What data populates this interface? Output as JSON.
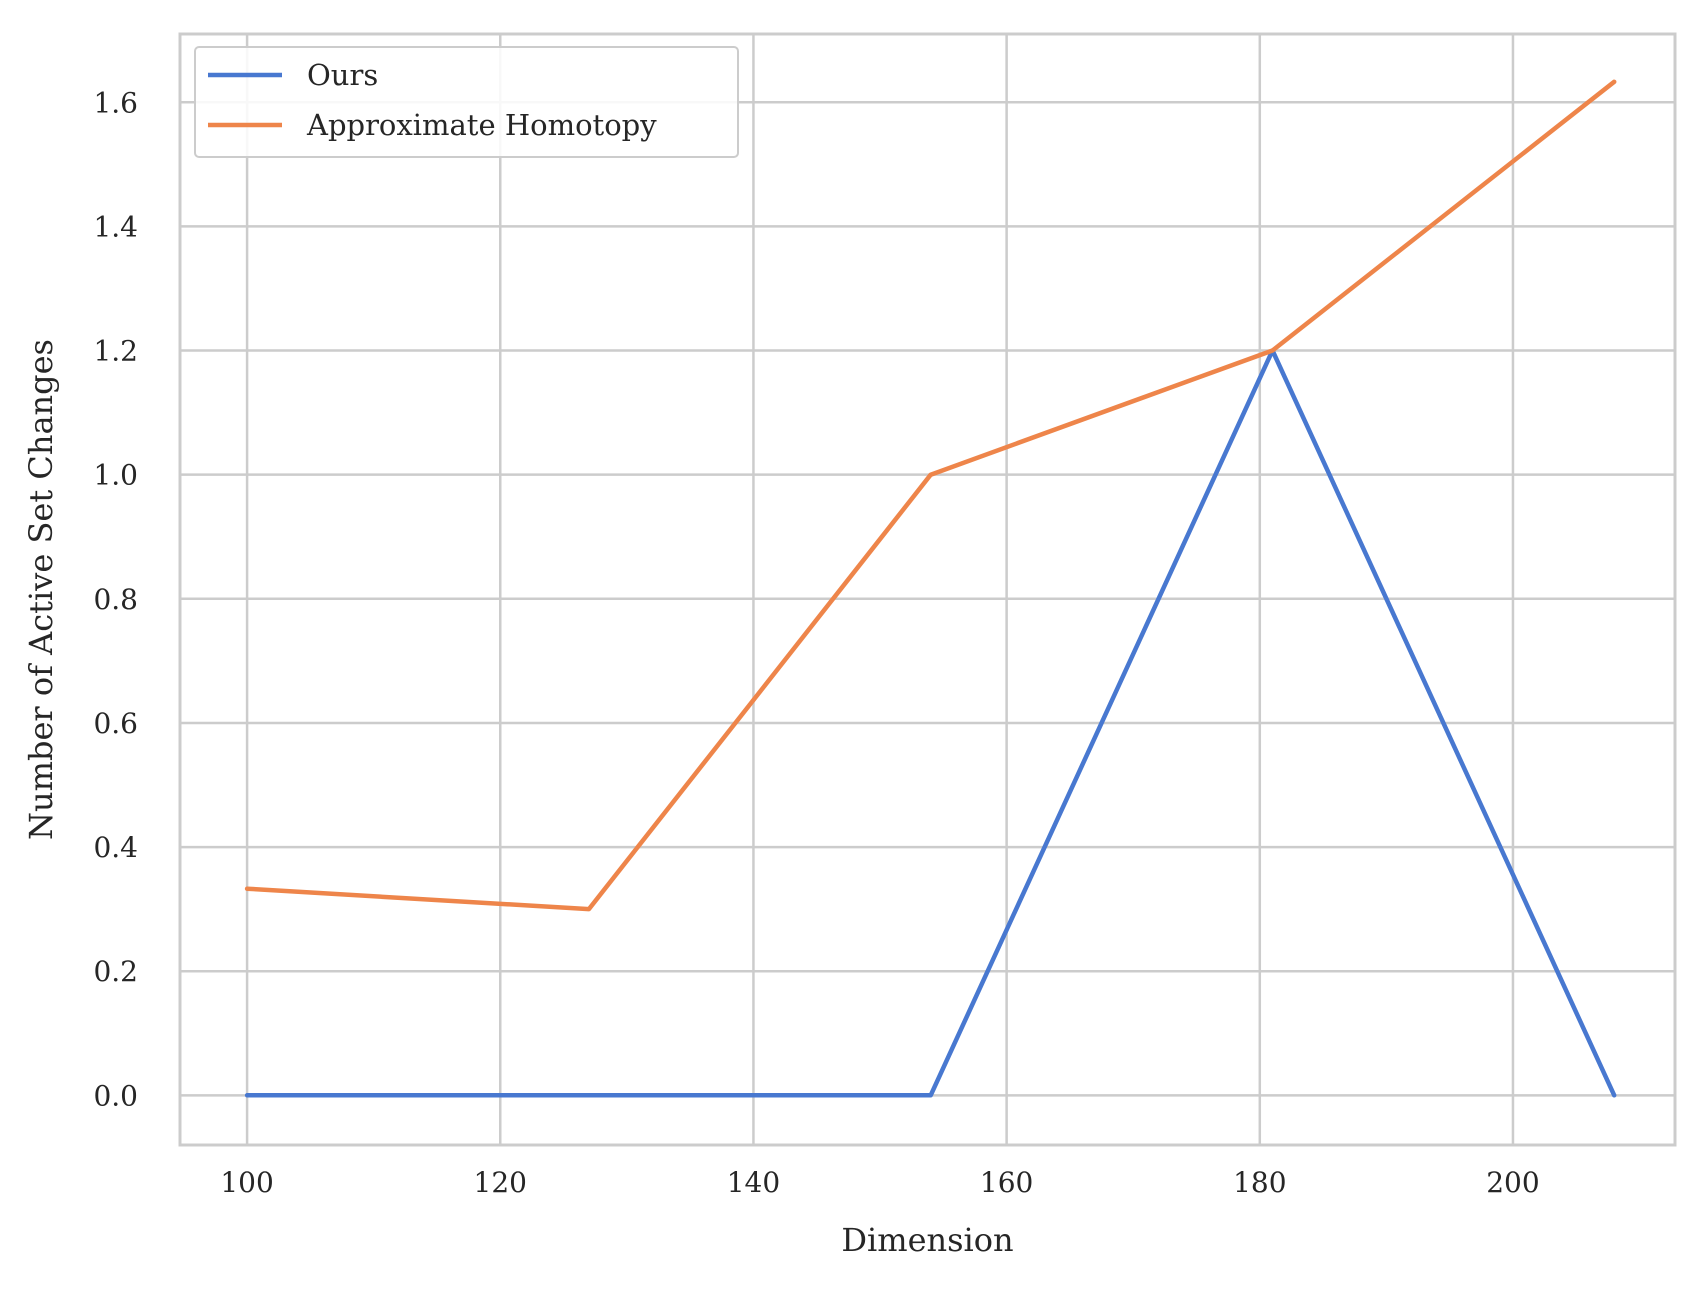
{
  "chart_data": {
    "type": "line",
    "xlabel": "Dimension",
    "ylabel": "Number of Active Set Changes",
    "xlim": [
      94.7,
      212.8
    ],
    "ylim": [
      -0.08,
      1.71
    ],
    "x_ticks": [
      "100",
      "120",
      "140",
      "160",
      "180",
      "200"
    ],
    "y_ticks": [
      "0.0",
      "0.2",
      "0.4",
      "0.6",
      "0.8",
      "1.0",
      "1.2",
      "1.4",
      "1.6"
    ],
    "x": [
      100,
      127,
      154,
      181,
      208
    ],
    "series": [
      {
        "name": "Ours",
        "color": "#4878d0",
        "values": [
          0.0,
          0.0,
          0.0,
          1.2,
          0.0
        ]
      },
      {
        "name": "Approximate Homotopy",
        "color": "#ee854a",
        "values": [
          0.333,
          0.3,
          1.0,
          1.2,
          1.633
        ]
      }
    ],
    "grid": true,
    "legend_position": "upper-left",
    "grid_color": "#cccccc"
  }
}
